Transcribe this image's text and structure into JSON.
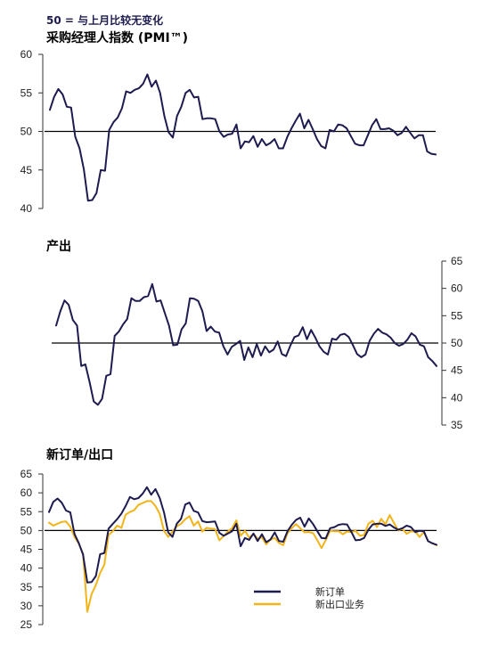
{
  "header_note": "50 = 与上月比较无变化",
  "colors": {
    "navy": "#1d1b4f",
    "gold": "#f2b418",
    "axis": "#333333",
    "ref": "#000000"
  },
  "chart_data": [
    {
      "type": "line",
      "title": "采购经理人指数 (PMI™)",
      "y_axis_side": "left",
      "ylim": [
        40,
        60
      ],
      "yticks": [
        40,
        45,
        50,
        55,
        60
      ],
      "reference_line": 50,
      "grid": false,
      "series": [
        {
          "values": [
            52.8,
            54.5,
            55.5,
            54.8,
            53.2,
            53.1,
            49.3,
            47.8,
            45.1,
            41.0,
            41.1,
            42.0,
            45.0,
            44.9,
            50.2,
            51.2,
            51.8,
            53.0,
            55.2,
            55.0,
            55.4,
            55.6,
            56.2,
            57.4,
            55.8,
            56.6,
            55.0,
            52.0,
            49.9,
            49.2,
            52.0,
            53.2,
            55.0,
            55.4,
            54.4,
            54.5,
            51.6,
            51.7,
            51.7,
            51.6,
            50.0,
            49.3,
            49.6,
            49.7,
            50.9,
            47.8,
            48.7,
            48.6,
            49.4,
            48.0,
            49.0,
            48.2,
            48.5,
            49.0,
            47.8,
            47.8,
            49.3,
            50.4,
            51.4,
            52.3,
            50.4,
            51.5,
            50.3,
            49.0,
            48.1,
            47.8,
            50.2,
            50.0,
            50.9,
            50.8,
            50.4,
            49.4,
            48.4,
            48.2,
            48.2,
            49.5,
            50.8,
            51.6,
            50.3,
            50.3,
            50.4,
            50.1,
            49.5,
            49.8,
            50.6,
            49.8,
            49.1,
            49.5,
            49.5,
            47.4,
            47.1,
            47.0
          ]
        }
      ]
    },
    {
      "type": "line",
      "title": "产出",
      "y_axis_side": "right",
      "ylim": [
        35,
        65
      ],
      "yticks": [
        35,
        40,
        45,
        50,
        55,
        60,
        65
      ],
      "reference_line": 50,
      "grid": false,
      "series": [
        {
          "values": [
            53.2,
            55.8,
            57.8,
            57.0,
            54.2,
            53.2,
            45.8,
            46.1,
            42.9,
            39.3,
            38.7,
            39.8,
            44.0,
            44.3,
            51.3,
            52.1,
            53.4,
            54.4,
            58.2,
            57.7,
            57.7,
            58.4,
            58.6,
            60.8,
            57.6,
            57.8,
            55.5,
            53.2,
            49.6,
            49.7,
            52.5,
            53.6,
            58.2,
            58.1,
            57.7,
            55.8,
            52.2,
            53.0,
            52.1,
            51.9,
            49.4,
            47.9,
            49.3,
            49.8,
            50.4,
            46.9,
            49.2,
            47.4,
            49.8,
            47.7,
            49.4,
            48.3,
            48.8,
            50.3,
            48.0,
            47.6,
            49.5,
            51.1,
            51.4,
            52.9,
            50.7,
            52.4,
            51.0,
            49.4,
            48.4,
            47.9,
            50.8,
            50.6,
            51.5,
            51.7,
            51.1,
            49.6,
            48.0,
            47.4,
            47.9,
            50.4,
            51.7,
            52.6,
            51.9,
            51.6,
            51.0,
            50.0,
            49.5,
            49.8,
            50.6,
            51.8,
            51.2,
            49.7,
            49.4,
            47.4,
            46.7,
            45.8
          ]
        }
      ]
    },
    {
      "type": "line",
      "title": "新订单/出口",
      "y_axis_side": "left",
      "ylim": [
        25,
        65
      ],
      "yticks": [
        25,
        30,
        35,
        40,
        45,
        50,
        55,
        60,
        65
      ],
      "reference_line": 50,
      "grid": false,
      "legend_position": "bottom-right",
      "series": [
        {
          "name": "新订单",
          "color_key": "navy",
          "values": [
            54.9,
            57.6,
            58.5,
            57.4,
            55.3,
            54.8,
            49.0,
            46.6,
            43.6,
            36.2,
            36.3,
            37.9,
            43.7,
            44.0,
            50.5,
            51.8,
            53.0,
            54.5,
            56.5,
            58.9,
            58.3,
            58.6,
            59.8,
            61.5,
            59.5,
            61.0,
            58.6,
            54.8,
            49.5,
            48.3,
            51.8,
            53.1,
            56.9,
            57.4,
            55.2,
            54.8,
            52.5,
            52.2,
            52.3,
            52.4,
            49.4,
            48.6,
            49.2,
            49.8,
            51.8,
            45.8,
            48.0,
            47.5,
            49.2,
            47.2,
            49.0,
            46.9,
            47.6,
            49.5,
            47.2,
            47.0,
            49.8,
            51.5,
            52.8,
            53.4,
            51.0,
            53.2,
            51.7,
            49.8,
            48.0,
            47.9,
            50.6,
            50.9,
            51.5,
            51.7,
            51.6,
            49.6,
            47.4,
            47.5,
            48.0,
            50.2,
            51.6,
            51.8,
            51.8,
            51.2,
            51.6,
            50.8,
            50.2,
            50.6,
            51.3,
            50.9,
            49.6,
            49.9,
            49.8,
            47.2,
            46.6,
            46.2
          ]
        },
        {
          "name": "新出口业务",
          "color_key": "gold",
          "values": [
            52.1,
            51.3,
            51.8,
            52.3,
            52.4,
            51.0,
            48.3,
            46.5,
            43.8,
            28.4,
            33.1,
            35.5,
            38.7,
            40.9,
            48.8,
            49.8,
            51.3,
            50.7,
            54.2,
            54.9,
            55.4,
            56.8,
            57.3,
            57.8,
            57.8,
            56.5,
            54.4,
            49.9,
            48.3,
            49.7,
            51.1,
            51.8,
            53.0,
            53.8,
            51.3,
            52.4,
            49.7,
            50.7,
            50.5,
            50.4,
            47.4,
            48.5,
            49.7,
            50.6,
            52.7,
            48.6,
            49.9,
            48.1,
            49.1,
            47.8,
            48.2,
            46.3,
            47.6,
            48.0,
            46.7,
            46.1,
            49.3,
            50.6,
            51.7,
            50.6,
            49.5,
            49.6,
            49.3,
            47.4,
            45.3,
            47.5,
            49.9,
            49.8,
            49.8,
            49.0,
            49.7,
            49.6,
            49.9,
            48.6,
            48.8,
            51.8,
            52.6,
            50.9,
            53.1,
            51.6,
            54.1,
            52.0,
            50.0,
            50.4,
            49.1,
            49.8,
            49.7,
            48.3,
            49.6,
            47.2,
            46.6,
            46.1
          ]
        }
      ]
    }
  ]
}
